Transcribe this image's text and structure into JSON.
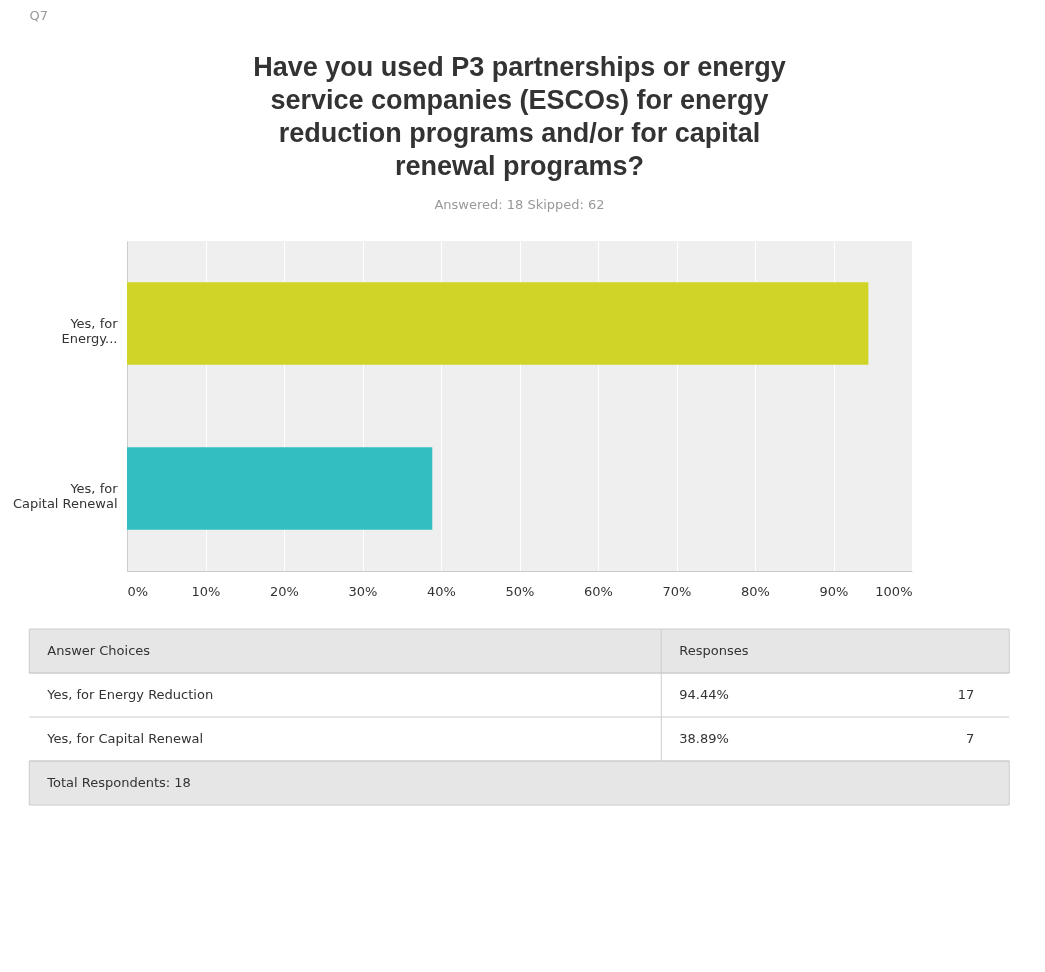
{
  "chart_data": {
    "type": "bar",
    "orientation": "horizontal",
    "title": "Have you used P3 partnerships or energy service companies (ESCOs) for energy reduction programs and/or for capital renewal programs?",
    "subtitle": "Answered: 18    Skipped: 62",
    "categories": [
      "Yes, for Energy...",
      "Yes, for Capital Renewal"
    ],
    "values": [
      94.44,
      38.89
    ],
    "colors": [
      "#cfd426",
      "#33bfc1"
    ],
    "xlim": [
      0,
      100
    ],
    "xticks": [
      {
        "value": 0,
        "label": "0%"
      },
      {
        "value": 10,
        "label": "10%"
      },
      {
        "value": 20,
        "label": "20%"
      },
      {
        "value": 30,
        "label": "30%"
      },
      {
        "value": 40,
        "label": "40%"
      },
      {
        "value": 50,
        "label": "50%"
      },
      {
        "value": 60,
        "label": "60%"
      },
      {
        "value": 70,
        "label": "70%"
      },
      {
        "value": 80,
        "label": "80%"
      },
      {
        "value": 90,
        "label": "90%"
      },
      {
        "value": 100,
        "label": "100%"
      }
    ],
    "grid": "x",
    "legend": false,
    "annotations": [
      "Q7",
      "Answer Choices",
      "Responses",
      "Yes, for Energy Reduction",
      "94.44%",
      "17",
      "Yes, for Capital Renewal",
      "38.89%",
      "7",
      "Total Respondents: 18"
    ]
  }
}
